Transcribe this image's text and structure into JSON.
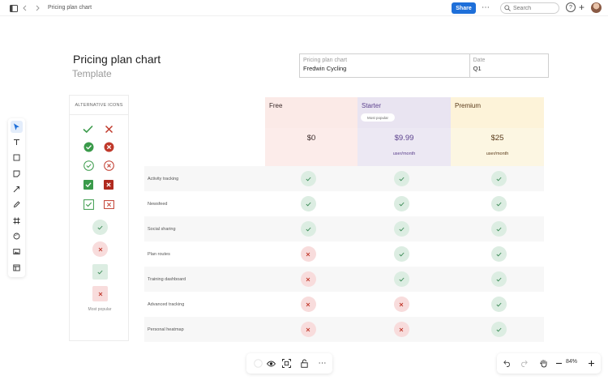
{
  "topbar": {
    "doc_title": "Pricing plan chart",
    "share_label": "Share",
    "search_placeholder": "Search",
    "help_label": "?"
  },
  "page": {
    "title": "Pricing plan chart",
    "subtitle": "Template"
  },
  "info": {
    "label1": "Pricing plan chart",
    "value1": "Fredwin Cycling",
    "label2": "Date",
    "value2": "Q1"
  },
  "alt_icons": {
    "header": "ALTERNATIVE ICONS",
    "footer": "Most popular"
  },
  "plans": [
    {
      "name": "Free",
      "price": "$0",
      "unit": "",
      "badge": "",
      "bg": "#fbeae7",
      "price_bg": "#fcecea",
      "color": "#3a2a2a"
    },
    {
      "name": "Starter",
      "price": "$9.99",
      "unit": "user/month",
      "badge": "Most popular",
      "bg": "#e9e4f1",
      "price_bg": "#ece8f3",
      "color": "#5a3f8c"
    },
    {
      "name": "Premium",
      "price": "$25",
      "unit": "user/month",
      "badge": "",
      "bg": "#fdf3d9",
      "price_bg": "#fcf6e2",
      "color": "#5a3a1a"
    }
  ],
  "features": [
    {
      "name": "Activity tracking",
      "values": [
        true,
        true,
        true
      ]
    },
    {
      "name": "Newsfeed",
      "values": [
        true,
        true,
        true
      ]
    },
    {
      "name": "Social sharing",
      "values": [
        true,
        true,
        true
      ]
    },
    {
      "name": "Plan routes",
      "values": [
        false,
        true,
        true
      ]
    },
    {
      "name": "Training dashboard",
      "values": [
        false,
        true,
        true
      ]
    },
    {
      "name": "Advanced tracking",
      "values": [
        false,
        false,
        true
      ]
    },
    {
      "name": "Personal heatmap",
      "values": [
        false,
        false,
        true
      ]
    }
  ],
  "zoom": {
    "value": "84%"
  },
  "colors": {
    "accent": "#1e6fd9",
    "check": "#3a8a55",
    "cross": "#c0392b"
  }
}
